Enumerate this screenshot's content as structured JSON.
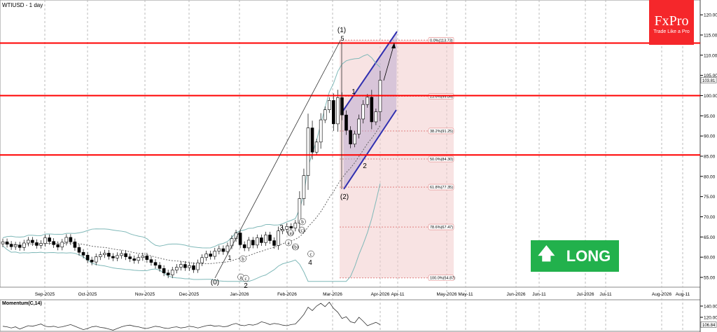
{
  "header": {
    "symbol_title": "WTIUSD - 1 day"
  },
  "logo": {
    "brand": "FxPro",
    "tagline": "Trade Like a Pro",
    "color": "#f5272b"
  },
  "signal": {
    "label": "LONG",
    "icon": "arrow-up-icon",
    "color": "#22b14c"
  },
  "chart_data": {
    "type": "candlestick",
    "title": "WTIUSD - 1 day",
    "x_ticks": [
      "Sep-2025",
      "Oct-2025",
      "Nov-2025",
      "Dec-2025",
      "Jan-2026",
      "Feb-2026",
      "Mar-2026",
      "Apr-2026",
      "Apr-11",
      "May-2026",
      "May-11",
      "Jun-2026",
      "Jun-11",
      "Jul-2026",
      "Jul-11",
      "Aug-2026",
      "Aug-11"
    ],
    "y_ticks": [
      "120.00",
      "115.00",
      "110.00",
      "105.00",
      "100.00",
      "95.00",
      "90.00",
      "85.00",
      "80.00",
      "75.00",
      "70.00",
      "65.00",
      "60.00",
      "55.00"
    ],
    "ylim": [
      54,
      121
    ],
    "last_price": "103.81",
    "closes": [
      63.8,
      63.2,
      62.6,
      63.0,
      62.4,
      63.5,
      64.2,
      63.6,
      62.9,
      63.4,
      64.8,
      63.9,
      63.1,
      62.5,
      63.7,
      64.9,
      63.8,
      62.4,
      61.2,
      60.5,
      59.3,
      58.8,
      60.1,
      60.6,
      61.0,
      60.2,
      59.8,
      60.4,
      60.9,
      60.1,
      59.6,
      59.2,
      59.9,
      60.3,
      59.4,
      58.7,
      58.0,
      57.2,
      56.1,
      55.6,
      56.8,
      57.5,
      58.2,
      57.4,
      57.9,
      56.9,
      58.6,
      59.9,
      60.8,
      60.2,
      61.5,
      62.1,
      61.4,
      62.8,
      64.6,
      66.0,
      63.1,
      62.3,
      64.2,
      63.0,
      64.8,
      63.6,
      65.5,
      64.1,
      62.9,
      66.5,
      66.9,
      67.6,
      67.2,
      68.4,
      74.5,
      80.2,
      92.0,
      86.0,
      88.5,
      94.0,
      96.5,
      98.8,
      93.0,
      99.5,
      95.2,
      91.4,
      88.0,
      90.5,
      94.2,
      97.8,
      99.6,
      93.5,
      96.0,
      103.81
    ],
    "horizontal_levels": [
      113.0,
      100.0,
      85.3
    ],
    "fibonacci": [
      {
        "label": "0.0%(113.73)",
        "value": 113.73
      },
      {
        "label": "23.6%(99.84)",
        "value": 99.84
      },
      {
        "label": "38.2%(91.25)",
        "value": 91.25
      },
      {
        "label": "50.0%(84.30)",
        "value": 84.3
      },
      {
        "label": "61.8%(77.35)",
        "value": 77.35
      },
      {
        "label": "78.6%(67.47)",
        "value": 67.47
      },
      {
        "label": "100.0%(54.87)",
        "value": 54.87
      }
    ],
    "wave_labels": [
      "(1)",
      "5",
      "1",
      "2",
      "(2)",
      "(0)",
      "1",
      "2",
      "3",
      "4",
      "b",
      "a",
      "c",
      "(a)",
      "(c)",
      "b",
      "a",
      "(b)",
      "c"
    ],
    "momentum": {
      "title": "Momentum(C,14)",
      "y_ticks": [
        "140.00",
        "120.00"
      ],
      "last_value": "106.84",
      "values": [
        104,
        103,
        101,
        103,
        99,
        102,
        105,
        104,
        106,
        108,
        104,
        103,
        104,
        102,
        103,
        105,
        107,
        104,
        101,
        98,
        100,
        103,
        104,
        102,
        101,
        99,
        97,
        100,
        103,
        105,
        106,
        104,
        103,
        101,
        100,
        102,
        104,
        103,
        101,
        100,
        102,
        103,
        101,
        102,
        104,
        103,
        101,
        103,
        105,
        106,
        104,
        105,
        103,
        104,
        107,
        109,
        106,
        105,
        107,
        106,
        108,
        112,
        110,
        107,
        109,
        108,
        106,
        105,
        107,
        108,
        116,
        125,
        138,
        132,
        140,
        145,
        139,
        147,
        136,
        129,
        118,
        121,
        112,
        110,
        120,
        113,
        105,
        108,
        111,
        106.84
      ]
    }
  }
}
